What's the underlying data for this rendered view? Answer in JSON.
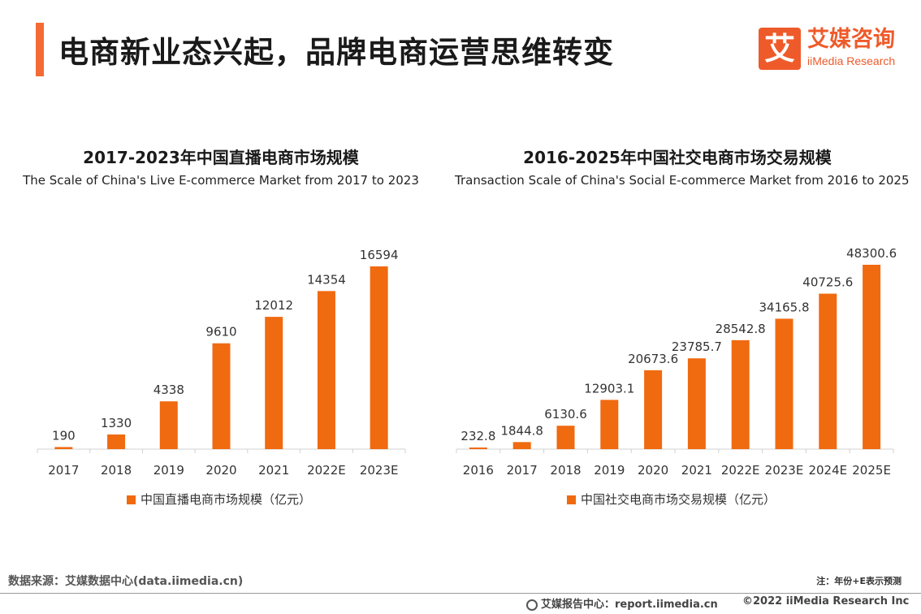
{
  "header": {
    "title": "电商新业态兴起，品牌电商运营思维转变",
    "logo_mark": "艾",
    "logo_cn": "艾媒咨询",
    "logo_en": "iiMedia Research"
  },
  "chart_data": [
    {
      "type": "bar",
      "title": "2017-2023年中国直播电商市场规模",
      "subtitle": "The Scale of China's Live E-commerce Market from 2017 to 2023",
      "categories": [
        "2017",
        "2018",
        "2019",
        "2020",
        "2021",
        "2022E",
        "2023E"
      ],
      "series": [
        {
          "name": "中国直播电商市场规模（亿元）",
          "values": [
            190,
            1330,
            4338,
            9610,
            12012,
            14354,
            16594
          ]
        }
      ],
      "data_labels": [
        "190",
        "1330",
        "4338",
        "9610",
        "12012",
        "14354",
        "16594"
      ],
      "xlabel": "",
      "ylabel": "",
      "ylim": [
        0,
        16594
      ],
      "color": "#f06a10",
      "grid": false,
      "legend": "bottom"
    },
    {
      "type": "bar",
      "title": "2016-2025年中国社交电商市场交易规模",
      "subtitle": "Transaction Scale of China's Social E-commerce Market from 2016 to 2025",
      "categories": [
        "2016",
        "2017",
        "2018",
        "2019",
        "2020",
        "2021",
        "2022E",
        "2023E",
        "2024E",
        "2025E"
      ],
      "series": [
        {
          "name": "中国社交电商市场交易规模（亿元）",
          "values": [
            232.8,
            1844.8,
            6130.6,
            12903.1,
            20673.6,
            23785.7,
            28542.8,
            34165.8,
            40725.6,
            48300.6
          ]
        }
      ],
      "data_labels": [
        "232.8",
        "1844.8",
        "6130.6",
        "12903.1",
        "20673.6",
        "23785.7",
        "28542.8",
        "34165.8",
        "40725.6",
        "48300.6"
      ],
      "xlabel": "",
      "ylabel": "",
      "ylim": [
        0,
        48300.6
      ],
      "color": "#f06a10",
      "grid": false,
      "legend": "bottom"
    }
  ],
  "footer": {
    "source": "数据来源：艾媒数据中心(data.iimedia.cn)",
    "note": "注：年份+E表示预测",
    "report": "艾媒报告中心：report.iimedia.cn",
    "copyright": "©2022  iiMedia Research  Inc"
  }
}
